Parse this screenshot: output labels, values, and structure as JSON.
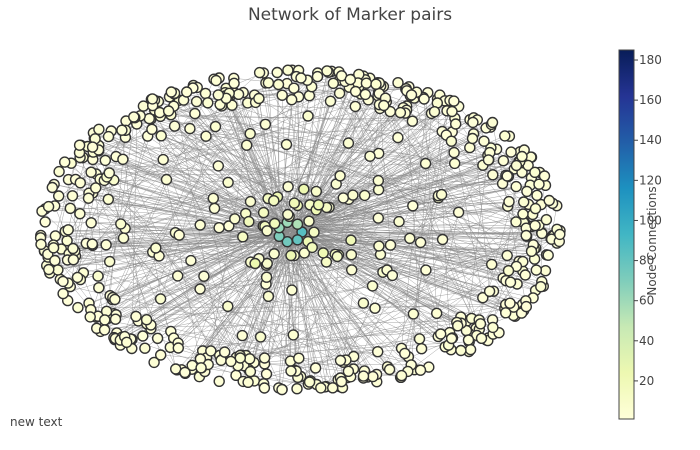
{
  "title": "Network of Marker pairs",
  "annotation": "new text",
  "colorbar": {
    "title": "Node Connections",
    "range": [
      1,
      185
    ],
    "ticks": [
      20,
      40,
      60,
      80,
      100,
      120,
      140,
      160,
      180
    ],
    "colorscale": [
      "#ffffd9",
      "#edf8b1",
      "#c7e9b4",
      "#7fcdbb",
      "#41b6c4",
      "#1d91c0",
      "#225ea8",
      "#253494",
      "#081d58"
    ]
  },
  "chart_data": {
    "type": "scatter",
    "subtype": "network-graph",
    "title": "Network of Marker pairs",
    "node_count_estimate": 700,
    "node_color_metric": "Node Connections",
    "node_color_range": [
      1,
      185
    ],
    "edge_color": "#888888",
    "layout": "elliptical ring of peripheral nodes with a dense central hub cluster",
    "hub_connections_estimate": [
      85,
      80,
      75,
      70,
      62,
      60,
      55
    ]
  }
}
